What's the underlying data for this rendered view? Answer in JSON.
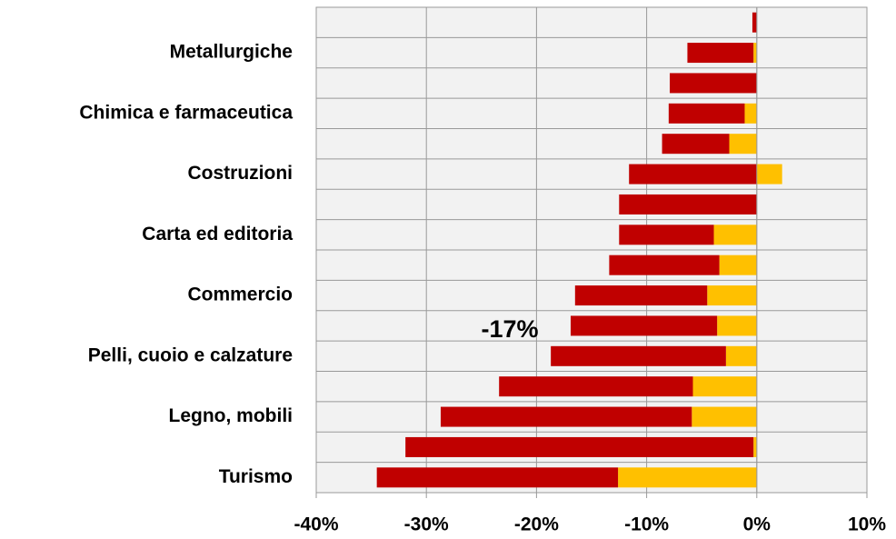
{
  "chart_data": {
    "type": "stacked-barh",
    "categories": [
      null,
      "Metallurgiche",
      null,
      "Chimica e farmaceutica",
      null,
      "Costruzioni",
      null,
      "Carta ed editoria",
      null,
      "Commercio",
      null,
      "Pelli, cuoio e calzature",
      null,
      "Legno, mobili",
      null,
      "Turismo"
    ],
    "series": [
      {
        "color": "#ffc000",
        "values": [
          0,
          -0.3,
          0,
          -1.1,
          -2.5,
          2.3,
          0,
          -3.9,
          -3.4,
          -4.5,
          -3.6,
          -2.8,
          -5.8,
          -5.9,
          -0.3,
          -12.6
        ]
      },
      {
        "color": "#c00000",
        "values": [
          -0.4,
          -6.0,
          -7.9,
          -6.9,
          -6.1,
          -11.6,
          -12.5,
          -8.6,
          -10.0,
          -12.0,
          -13.3,
          -15.9,
          -17.6,
          -22.8,
          -31.6,
          -21.9
        ]
      }
    ],
    "annotations": [
      "-17%"
    ],
    "xlim": [
      -40,
      10
    ],
    "xticks": [
      {
        "value": -40,
        "label": "-40%"
      },
      {
        "value": -30,
        "label": "-30%"
      },
      {
        "value": -20,
        "label": "-20%"
      },
      {
        "value": -10,
        "label": "-10%"
      },
      {
        "value": 0,
        "label": "0%"
      },
      {
        "value": 10,
        "label": "10%"
      }
    ],
    "grid": true
  }
}
